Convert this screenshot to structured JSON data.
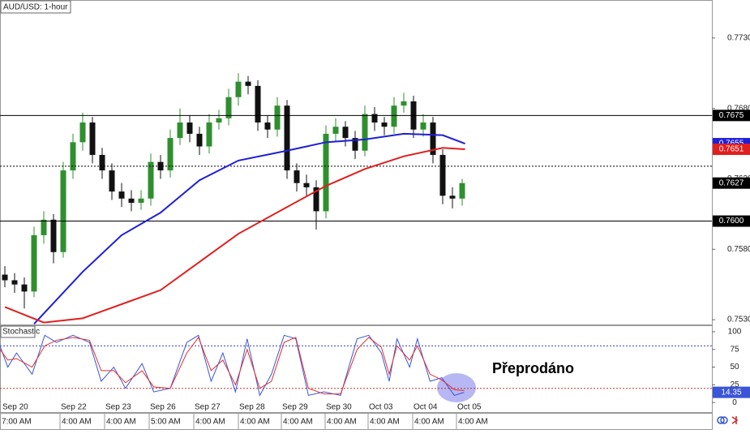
{
  "chart_data": [
    {
      "type": "candlestick",
      "title": "AUD/USD: 1-hour",
      "ylim": [
        0.75266,
        0.77564
      ],
      "yticks": [
        {
          "value": 0.753,
          "label": "0.7530"
        },
        {
          "value": 0.758,
          "label": "0.7580"
        },
        {
          "value": 0.763,
          "label": "0.7630"
        },
        {
          "value": 0.768,
          "label": "0.7680"
        },
        {
          "value": 0.773,
          "label": "0.7730"
        }
      ],
      "up_color": "#2f8f2f",
      "down_color": "#111111",
      "candles": [
        [
          0.7562,
          0.7568,
          0.7553,
          0.7558
        ],
        [
          0.7558,
          0.7563,
          0.7549,
          0.7555
        ],
        [
          0.7555,
          0.756,
          0.7538,
          0.755
        ],
        [
          0.755,
          0.7596,
          0.7546,
          0.759
        ],
        [
          0.759,
          0.7607,
          0.7584,
          0.7601
        ],
        [
          0.7601,
          0.7605,
          0.757,
          0.7578
        ],
        [
          0.7578,
          0.7642,
          0.7574,
          0.7636
        ],
        [
          0.7636,
          0.7662,
          0.763,
          0.7656
        ],
        [
          0.7656,
          0.7677,
          0.765,
          0.767
        ],
        [
          0.767,
          0.7674,
          0.7641,
          0.7647
        ],
        [
          0.7647,
          0.7652,
          0.763,
          0.7636
        ],
        [
          0.7636,
          0.7641,
          0.7615,
          0.7621
        ],
        [
          0.7621,
          0.7627,
          0.761,
          0.7616
        ],
        [
          0.7616,
          0.7622,
          0.7607,
          0.7613
        ],
        [
          0.7613,
          0.7622,
          0.7608,
          0.7616
        ],
        [
          0.7616,
          0.7648,
          0.7611,
          0.7642
        ],
        [
          0.7642,
          0.7647,
          0.763,
          0.7636
        ],
        [
          0.7636,
          0.7665,
          0.7631,
          0.7659
        ],
        [
          0.7659,
          0.768,
          0.7654,
          0.767
        ],
        [
          0.767,
          0.7675,
          0.7656,
          0.7662
        ],
        [
          0.7662,
          0.7667,
          0.7647,
          0.7653
        ],
        [
          0.7653,
          0.7676,
          0.7648,
          0.767
        ],
        [
          0.767,
          0.7679,
          0.7665,
          0.7673
        ],
        [
          0.7673,
          0.7694,
          0.7668,
          0.7688
        ],
        [
          0.7688,
          0.7705,
          0.7682,
          0.7699
        ],
        [
          0.7699,
          0.7703,
          0.769,
          0.7696
        ],
        [
          0.7696,
          0.77,
          0.7664,
          0.767
        ],
        [
          0.767,
          0.7675,
          0.7659,
          0.7665
        ],
        [
          0.7665,
          0.7688,
          0.766,
          0.7682
        ],
        [
          0.7682,
          0.7686,
          0.763,
          0.7636
        ],
        [
          0.7636,
          0.7641,
          0.7621,
          0.7627
        ],
        [
          0.7627,
          0.7633,
          0.7618,
          0.7624
        ],
        [
          0.7624,
          0.7629,
          0.7594,
          0.7607
        ],
        [
          0.7607,
          0.7668,
          0.7602,
          0.7662
        ],
        [
          0.7662,
          0.7673,
          0.7656,
          0.7667
        ],
        [
          0.7667,
          0.7671,
          0.7653,
          0.7659
        ],
        [
          0.7659,
          0.7664,
          0.7644,
          0.765
        ],
        [
          0.765,
          0.7682,
          0.7646,
          0.7676
        ],
        [
          0.7676,
          0.7681,
          0.7664,
          0.767
        ],
        [
          0.767,
          0.7674,
          0.7661,
          0.7667
        ],
        [
          0.7667,
          0.7688,
          0.7662,
          0.7682
        ],
        [
          0.7682,
          0.7691,
          0.7677,
          0.7685
        ],
        [
          0.7685,
          0.7689,
          0.7659,
          0.7665
        ],
        [
          0.7665,
          0.7676,
          0.766,
          0.767
        ],
        [
          0.767,
          0.7674,
          0.7641,
          0.7647
        ],
        [
          0.7647,
          0.7651,
          0.7612,
          0.7618
        ],
        [
          0.7618,
          0.7624,
          0.7609,
          0.7616
        ],
        [
          0.7616,
          0.763,
          0.7611,
          0.7627
        ]
      ],
      "series": [
        {
          "color": "#1f1fd6",
          "x": [
            3,
            8,
            12,
            16,
            20,
            24,
            29,
            33,
            37,
            41,
            45,
            47.3
          ],
          "values": [
            0.7527,
            0.7564,
            0.759,
            0.7606,
            0.7629,
            0.7643,
            0.765,
            0.7656,
            0.7658,
            0.7662,
            0.7661,
            0.7655
          ]
        },
        {
          "color": "#e01f1f",
          "x": [
            0,
            4,
            8,
            12,
            16,
            20,
            24,
            29,
            33,
            37,
            41,
            45,
            47.3
          ],
          "values": [
            0.7539,
            0.7528,
            0.7531,
            0.7541,
            0.7551,
            0.7571,
            0.7591,
            0.761,
            0.7625,
            0.7637,
            0.7646,
            0.7652,
            0.7651
          ]
        }
      ],
      "levels": [
        {
          "value": 0.7675,
          "label": "0.7675"
        },
        {
          "value": 0.7639
        },
        {
          "value": 0.76,
          "label": "0.7600"
        }
      ],
      "date_labels": [
        "Sep 20",
        "Sep 22",
        "Sep 23",
        "Sep 26",
        "Sep 27",
        "Sep 28",
        "Sep 29",
        "Sep 30",
        "Oct 03",
        "Oct 04",
        "Oct 05"
      ],
      "time_labels": [
        "7:00 AM",
        "4:00 AM",
        "4:00 AM",
        "5:00 AM",
        "4:00 AM",
        "4:00 AM",
        "4:00 AM",
        "4:00 AM",
        "4:00 AM",
        "4:00 AM",
        "4:00 AM"
      ],
      "annotation": "Přeprodáno"
    },
    {
      "type": "line",
      "title": "Stochastic",
      "ylim": [
        -13.6,
        108
      ],
      "yticks": [
        0,
        25,
        50,
        75,
        100
      ],
      "series": [
        {
          "color": "#3a55d8",
          "x": [
            -0.5,
            0.3,
            1.2,
            2.8,
            4.1,
            5.3,
            7,
            8.7,
            9.9,
            11.2,
            12.4,
            14.1,
            15.3,
            17,
            18.7,
            19.9,
            21.2,
            22.4,
            23.7,
            24.9,
            26.2,
            27.4,
            28.7,
            29.9,
            31.2,
            32.8,
            34.5,
            36.2,
            37.4,
            38.7,
            39.5,
            40.3,
            41.6,
            42.4,
            43.7,
            44.9,
            46.2,
            47.2
          ],
          "values": [
            80,
            50,
            70,
            40,
            95,
            85,
            95,
            85,
            30,
            50,
            20,
            55,
            15,
            20,
            85,
            95,
            30,
            70,
            15,
            90,
            10,
            40,
            95,
            90,
            10,
            15,
            10,
            90,
            95,
            70,
            30,
            90,
            50,
            90,
            30,
            35,
            10,
            14.35
          ]
        },
        {
          "color": "#e03030",
          "x": [
            -0.5,
            0.3,
            1.2,
            2.8,
            4.1,
            5.3,
            7,
            8.7,
            9.9,
            11.2,
            12.4,
            14.1,
            15.3,
            17,
            18.7,
            19.9,
            21.2,
            22.4,
            23.7,
            24.9,
            26.2,
            27.4,
            28.7,
            29.9,
            31.2,
            32.8,
            34.5,
            36.2,
            37.4,
            38.7,
            39.5,
            40.3,
            41.6,
            42.4,
            43.7,
            44.9,
            46.2,
            47.2
          ],
          "values": [
            75,
            60,
            62,
            50,
            80,
            88,
            92,
            88,
            45,
            45,
            28,
            45,
            22,
            20,
            70,
            92,
            45,
            60,
            25,
            75,
            20,
            30,
            85,
            92,
            20,
            12,
            12,
            75,
            92,
            78,
            40,
            80,
            60,
            80,
            40,
            32,
            18,
            17
          ]
        }
      ],
      "levels": [
        {
          "value": 80,
          "color": "#3344cc"
        },
        {
          "value": 20,
          "color": "#cc3333"
        }
      ]
    }
  ]
}
